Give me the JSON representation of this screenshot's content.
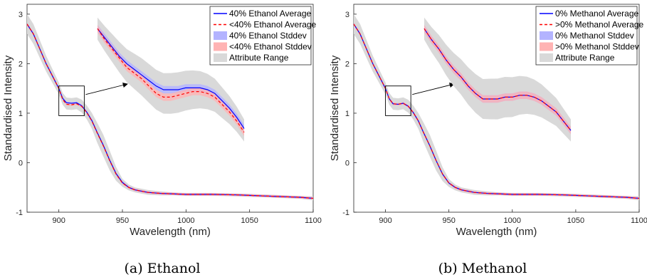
{
  "chart_data": [
    {
      "type": "line",
      "caption": "(a) Ethanol",
      "xlabel": "Wavelength (nm)",
      "ylabel": "Standardised Intensity",
      "xlim": [
        875,
        1100
      ],
      "ylim": [
        -1,
        3.2
      ],
      "xticks": [
        900,
        950,
        1000,
        1050,
        1100
      ],
      "yticks": [
        -1,
        0,
        1,
        2,
        3
      ],
      "legend_position": "top-right",
      "legend": [
        "40% Ethanol Average",
        "<40% Ethanol Average",
        "40% Ethanol Stddev",
        "<40% Ethanol Stddev",
        "Attribute Range"
      ],
      "colors": {
        "series1": "#0000ff",
        "series2": "#ff0000",
        "band1": "#b3b3ff",
        "band2": "#ffb3b3",
        "range": "#d9d9d9"
      },
      "x": [
        875,
        880,
        885,
        890,
        895,
        900,
        903,
        906,
        910,
        914,
        918,
        922,
        926,
        930,
        935,
        940,
        945,
        950,
        955,
        960,
        970,
        980,
        990,
        1000,
        1010,
        1020,
        1030,
        1040,
        1050,
        1060,
        1070,
        1080,
        1090,
        1100
      ],
      "series": [
        {
          "name": "40% Ethanol Average",
          "style": "solid",
          "values": [
            2.8,
            2.6,
            2.3,
            2.0,
            1.75,
            1.5,
            1.3,
            1.21,
            1.2,
            1.21,
            1.15,
            1.02,
            0.85,
            0.62,
            0.35,
            0.05,
            -0.22,
            -0.4,
            -0.5,
            -0.55,
            -0.6,
            -0.62,
            -0.63,
            -0.64,
            -0.64,
            -0.64,
            -0.645,
            -0.65,
            -0.66,
            -0.67,
            -0.68,
            -0.69,
            -0.7,
            -0.72
          ]
        },
        {
          "name": "<40% Ethanol Average",
          "style": "dashed",
          "values": [
            2.8,
            2.6,
            2.3,
            2.0,
            1.75,
            1.5,
            1.28,
            1.18,
            1.17,
            1.19,
            1.14,
            1.01,
            0.84,
            0.61,
            0.34,
            0.04,
            -0.23,
            -0.41,
            -0.5,
            -0.55,
            -0.6,
            -0.62,
            -0.63,
            -0.64,
            -0.64,
            -0.64,
            -0.645,
            -0.65,
            -0.66,
            -0.67,
            -0.68,
            -0.69,
            -0.7,
            -0.72
          ]
        }
      ],
      "range_half_width": [
        0.2,
        0.2,
        0.18,
        0.16,
        0.14,
        0.12,
        0.12,
        0.12,
        0.12,
        0.12,
        0.13,
        0.14,
        0.16,
        0.2,
        0.22,
        0.2,
        0.14,
        0.08,
        0.06,
        0.05,
        0.05,
        0.04,
        0.03,
        0.03,
        0.03,
        0.03,
        0.03,
        0.03,
        0.03,
        0.03,
        0.03,
        0.03,
        0.03,
        0.04
      ],
      "inset": {
        "x_range": [
          900,
          920
        ],
        "y_range": [
          0.95,
          1.55
        ],
        "x": [
          900,
          901,
          902,
          903,
          904,
          905,
          906,
          907,
          908,
          909,
          910,
          911,
          912,
          913,
          914,
          915,
          916,
          917,
          918,
          919,
          920
        ],
        "series": [
          {
            "name": "40% Ethanol Average",
            "values": [
              1.53,
              1.48,
              1.43,
              1.38,
              1.34,
              1.31,
              1.28,
              1.25,
              1.22,
              1.2,
              1.2,
              1.2,
              1.21,
              1.21,
              1.21,
              1.2,
              1.18,
              1.14,
              1.1,
              1.05,
              0.99
            ]
          },
          {
            "name": "<40% Ethanol Average",
            "values": [
              1.53,
              1.47,
              1.42,
              1.37,
              1.32,
              1.29,
              1.26,
              1.22,
              1.18,
              1.16,
              1.16,
              1.17,
              1.18,
              1.19,
              1.19,
              1.18,
              1.16,
              1.12,
              1.08,
              1.03,
              0.97
            ]
          }
        ]
      }
    },
    {
      "type": "line",
      "caption": "(b) Methanol",
      "xlabel": "Wavelength (nm)",
      "ylabel": "Standardised Intensity",
      "xlim": [
        875,
        1100
      ],
      "ylim": [
        -1,
        3.2
      ],
      "xticks": [
        900,
        950,
        1000,
        1050,
        1100
      ],
      "yticks": [
        -1,
        0,
        1,
        2,
        3
      ],
      "legend_position": "top-right",
      "legend": [
        "0% Methanol Average",
        ">0% Methanol Average",
        "0% Methanol Stddev",
        ">0% Methanol Stddev",
        "Attribute Range"
      ],
      "colors": {
        "series1": "#0000ff",
        "series2": "#ff0000",
        "band1": "#b3b3ff",
        "band2": "#ffb3b3",
        "range": "#d9d9d9"
      },
      "x": [
        875,
        880,
        885,
        890,
        895,
        900,
        903,
        906,
        910,
        914,
        918,
        922,
        926,
        930,
        935,
        940,
        945,
        950,
        955,
        960,
        970,
        980,
        990,
        1000,
        1010,
        1020,
        1030,
        1040,
        1050,
        1060,
        1070,
        1080,
        1090,
        1100
      ],
      "series": [
        {
          "name": "0% Methanol Average",
          "style": "solid",
          "values": [
            2.8,
            2.6,
            2.3,
            2.0,
            1.75,
            1.5,
            1.29,
            1.19,
            1.18,
            1.2,
            1.14,
            1.01,
            0.84,
            0.61,
            0.34,
            0.04,
            -0.23,
            -0.41,
            -0.5,
            -0.55,
            -0.6,
            -0.62,
            -0.63,
            -0.64,
            -0.64,
            -0.64,
            -0.645,
            -0.65,
            -0.66,
            -0.67,
            -0.68,
            -0.69,
            -0.7,
            -0.72
          ]
        },
        {
          "name": ">0% Methanol Average",
          "style": "dashed",
          "values": [
            2.8,
            2.6,
            2.3,
            2.0,
            1.75,
            1.5,
            1.29,
            1.19,
            1.18,
            1.2,
            1.14,
            1.01,
            0.84,
            0.61,
            0.34,
            0.04,
            -0.23,
            -0.41,
            -0.5,
            -0.55,
            -0.6,
            -0.62,
            -0.63,
            -0.64,
            -0.64,
            -0.64,
            -0.645,
            -0.65,
            -0.66,
            -0.67,
            -0.68,
            -0.69,
            -0.7,
            -0.72
          ]
        }
      ],
      "range_half_width": [
        0.2,
        0.2,
        0.18,
        0.16,
        0.14,
        0.12,
        0.12,
        0.12,
        0.12,
        0.12,
        0.13,
        0.14,
        0.16,
        0.2,
        0.22,
        0.2,
        0.14,
        0.08,
        0.06,
        0.05,
        0.05,
        0.04,
        0.03,
        0.03,
        0.03,
        0.03,
        0.03,
        0.03,
        0.03,
        0.03,
        0.03,
        0.03,
        0.03,
        0.04
      ],
      "inset": {
        "x_range": [
          900,
          920
        ],
        "y_range": [
          0.95,
          1.55
        ],
        "x": [
          900,
          901,
          902,
          903,
          904,
          905,
          906,
          907,
          908,
          909,
          910,
          911,
          912,
          913,
          914,
          915,
          916,
          917,
          918,
          919,
          920
        ],
        "series": [
          {
            "name": "0% Methanol Average",
            "values": [
              1.53,
              1.47,
              1.42,
              1.36,
              1.31,
              1.27,
              1.22,
              1.18,
              1.15,
              1.15,
              1.15,
              1.16,
              1.16,
              1.17,
              1.17,
              1.16,
              1.14,
              1.11,
              1.08,
              1.03,
              0.98
            ]
          },
          {
            "name": ">0% Methanol Average",
            "values": [
              1.53,
              1.47,
              1.42,
              1.36,
              1.31,
              1.27,
              1.22,
              1.18,
              1.15,
              1.15,
              1.15,
              1.16,
              1.16,
              1.17,
              1.17,
              1.16,
              1.14,
              1.11,
              1.08,
              1.03,
              0.98
            ]
          }
        ]
      }
    }
  ]
}
